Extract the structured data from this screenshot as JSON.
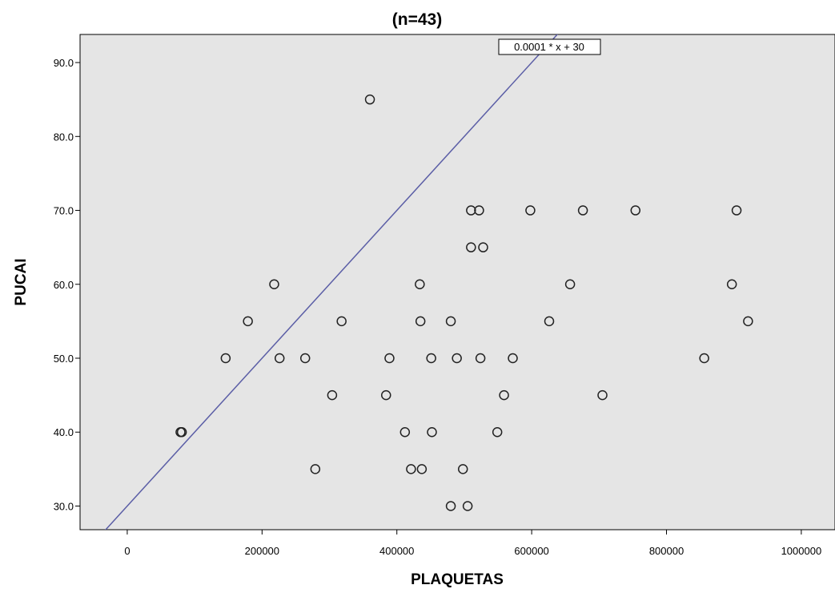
{
  "chart_data": {
    "type": "scatter",
    "title": "(n=43)",
    "xlabel": "PLAQUETAS",
    "ylabel": "PUCAI",
    "xlim": [
      -70000,
      1050000
    ],
    "ylim": [
      26.8,
      93.8
    ],
    "x_ticks": [
      0,
      200000,
      400000,
      600000,
      800000,
      1000000
    ],
    "x_tick_labels": [
      "0",
      "200000",
      "400000",
      "600000",
      "800000",
      "1000000"
    ],
    "y_ticks": [
      30,
      40,
      50,
      60,
      70,
      80,
      90
    ],
    "y_tick_labels": [
      "30.0",
      "40.0",
      "50.0",
      "60.0",
      "70.0",
      "80.0",
      "90.0"
    ],
    "grid": false,
    "colors": {
      "plot_bg": "#e5e5e5",
      "line": "#5b5ea6",
      "marker": "#222222"
    },
    "fit_line": {
      "label": "0.0001 * x + 30",
      "slope": 0.0001,
      "intercept": 30
    },
    "points": [
      {
        "x": 360000,
        "y": 85
      },
      {
        "x": 510000,
        "y": 70
      },
      {
        "x": 522000,
        "y": 70
      },
      {
        "x": 598000,
        "y": 70
      },
      {
        "x": 676000,
        "y": 70
      },
      {
        "x": 754000,
        "y": 70
      },
      {
        "x": 904000,
        "y": 70
      },
      {
        "x": 510000,
        "y": 65
      },
      {
        "x": 528000,
        "y": 65
      },
      {
        "x": 218000,
        "y": 60
      },
      {
        "x": 434000,
        "y": 60
      },
      {
        "x": 657000,
        "y": 60
      },
      {
        "x": 897000,
        "y": 60
      },
      {
        "x": 179000,
        "y": 55
      },
      {
        "x": 318000,
        "y": 55
      },
      {
        "x": 435000,
        "y": 55
      },
      {
        "x": 480000,
        "y": 55
      },
      {
        "x": 626000,
        "y": 55
      },
      {
        "x": 921000,
        "y": 55
      },
      {
        "x": 146000,
        "y": 50
      },
      {
        "x": 226000,
        "y": 50
      },
      {
        "x": 264000,
        "y": 50
      },
      {
        "x": 389000,
        "y": 50
      },
      {
        "x": 451000,
        "y": 50
      },
      {
        "x": 489000,
        "y": 50
      },
      {
        "x": 524000,
        "y": 50
      },
      {
        "x": 572000,
        "y": 50
      },
      {
        "x": 856000,
        "y": 50
      },
      {
        "x": 304000,
        "y": 45
      },
      {
        "x": 384000,
        "y": 45
      },
      {
        "x": 559000,
        "y": 45
      },
      {
        "x": 705000,
        "y": 45
      },
      {
        "x": 79000,
        "y": 40
      },
      {
        "x": 81000,
        "y": 40
      },
      {
        "x": 412000,
        "y": 40
      },
      {
        "x": 452000,
        "y": 40
      },
      {
        "x": 549000,
        "y": 40
      },
      {
        "x": 279000,
        "y": 35
      },
      {
        "x": 421000,
        "y": 35
      },
      {
        "x": 437000,
        "y": 35
      },
      {
        "x": 498000,
        "y": 35
      },
      {
        "x": 480000,
        "y": 30
      },
      {
        "x": 505000,
        "y": 30
      }
    ]
  }
}
